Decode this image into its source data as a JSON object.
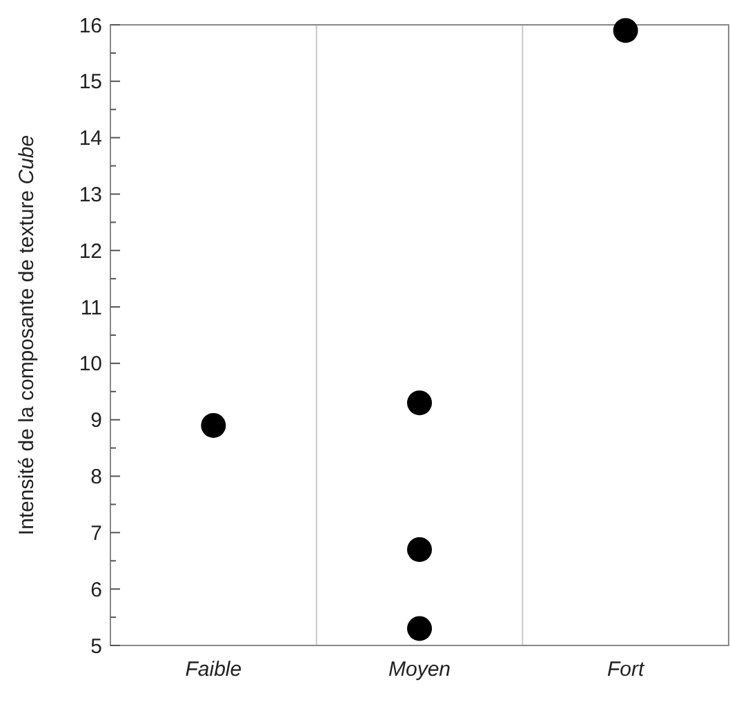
{
  "chart_data": {
    "type": "scatter",
    "ylabel": "Intensité de la composante de texture Cube",
    "categories": [
      "Faible",
      "Moyen",
      "Fort"
    ],
    "series": [
      {
        "color": "#000000",
        "x": [
          "Faible",
          "Moyen",
          "Moyen",
          "Moyen",
          "Fort"
        ],
        "values": [
          8.9,
          9.3,
          6.7,
          5.3,
          15.9
        ]
      }
    ],
    "ylim": [
      5,
      16
    ],
    "yticks": [
      5,
      {
        "value": 5.5,
        "label": null
      },
      6,
      {
        "value": 6.5,
        "label": null
      },
      7,
      {
        "value": 7.5,
        "label": null
      },
      8,
      {
        "value": 8.5,
        "label": null
      },
      9,
      {
        "value": 9.5,
        "label": null
      },
      10,
      {
        "value": 10.5,
        "label": null
      },
      11,
      {
        "value": 11.5,
        "label": null
      },
      12,
      {
        "value": 12.5,
        "label": null
      },
      13,
      {
        "value": 13.5,
        "label": null
      },
      14,
      {
        "value": 14.5,
        "label": null
      },
      15,
      {
        "value": 15.5,
        "label": null
      },
      16
    ],
    "grid": "x",
    "marker": "circle"
  }
}
